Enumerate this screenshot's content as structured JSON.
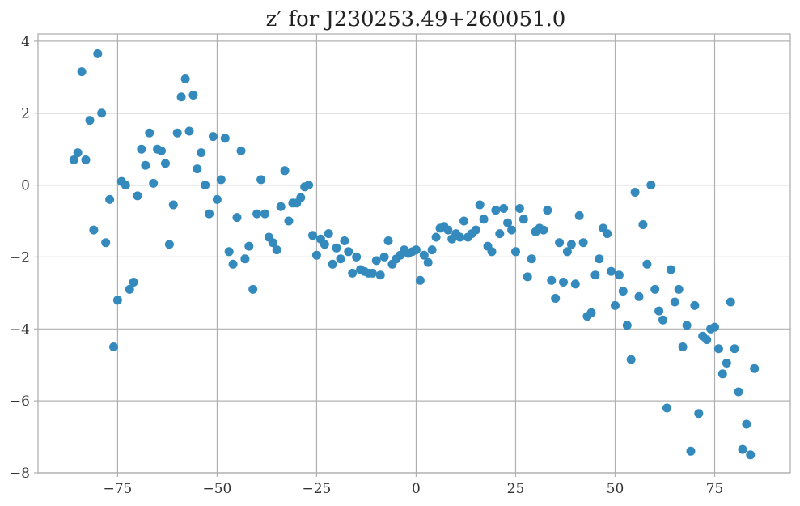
{
  "chart_data": {
    "type": "scatter",
    "title": "z′ for J230253.49+260051.0",
    "xlabel": "",
    "ylabel": "",
    "xlim": [
      -95,
      94
    ],
    "ylim": [
      -8,
      4.2
    ],
    "grid": true,
    "x_ticks": [
      -75,
      -50,
      -25,
      0,
      25,
      50,
      75
    ],
    "y_ticks": [
      -8,
      -6,
      -4,
      -2,
      0,
      2,
      4
    ],
    "x_tick_labels": [
      "−75",
      "−50",
      "−25",
      "0",
      "25",
      "50",
      "75"
    ],
    "y_tick_labels": [
      "−8",
      "−6",
      "−4",
      "−2",
      "0",
      "2",
      "4"
    ],
    "marker_color": "#348abd",
    "x": [
      -86,
      -85,
      -84,
      -83,
      -82,
      -81,
      -80,
      -79,
      -78,
      -77,
      -76,
      -75,
      -74,
      -73,
      -72,
      -71,
      -70,
      -69,
      -68,
      -67,
      -66,
      -65,
      -64,
      -63,
      -62,
      -61,
      -60,
      -59,
      -58,
      -57,
      -56,
      -55,
      -54,
      -53,
      -52,
      -51,
      -50,
      -49,
      -48,
      -47,
      -46,
      -45,
      -44,
      -43,
      -42,
      -41,
      -40,
      -39,
      -38,
      -37,
      -36,
      -35,
      -34,
      -33,
      -32,
      -31,
      -30,
      -29,
      -28,
      -27,
      -26,
      -25,
      -24,
      -23,
      -22,
      -21,
      -20,
      -19,
      -18,
      -17,
      -16,
      -15,
      -14,
      -13,
      -12,
      -11,
      -10,
      -9,
      -8,
      -7,
      -6,
      -5,
      -4,
      -3,
      -2,
      -1,
      0,
      1,
      2,
      3,
      4,
      5,
      6,
      7,
      8,
      9,
      10,
      11,
      12,
      13,
      14,
      15,
      16,
      17,
      18,
      19,
      20,
      21,
      22,
      23,
      24,
      25,
      26,
      27,
      28,
      29,
      30,
      31,
      32,
      33,
      34,
      35,
      36,
      37,
      38,
      39,
      40,
      41,
      42,
      43,
      44,
      45,
      46,
      47,
      48,
      49,
      50,
      51,
      52,
      53,
      54,
      55,
      56,
      57,
      58,
      59,
      60,
      61,
      62,
      63,
      64,
      65,
      66,
      67,
      68,
      69,
      70,
      71,
      72,
      73,
      74,
      75,
      76,
      77,
      78,
      79,
      80,
      81,
      82,
      83,
      84,
      85
    ],
    "y": [
      0.7,
      0.9,
      3.15,
      0.7,
      1.8,
      -1.25,
      3.65,
      2.0,
      -1.6,
      -0.4,
      -4.5,
      -3.2,
      0.1,
      0.0,
      -2.9,
      -2.7,
      -0.3,
      1.0,
      0.55,
      1.45,
      0.05,
      1.0,
      0.95,
      0.6,
      -1.65,
      -0.55,
      1.45,
      2.45,
      2.95,
      1.5,
      2.5,
      0.45,
      0.9,
      0.0,
      -0.8,
      1.35,
      -0.4,
      0.15,
      1.3,
      -1.85,
      -2.2,
      -0.9,
      0.95,
      -2.05,
      -1.7,
      -2.9,
      -0.8,
      0.15,
      -0.8,
      -1.45,
      -1.6,
      -1.8,
      -0.6,
      0.4,
      -1.0,
      -0.5,
      -0.5,
      -0.35,
      -0.05,
      0.0,
      -1.4,
      -1.95,
      -1.5,
      -1.65,
      -1.35,
      -2.2,
      -1.75,
      -2.05,
      -1.55,
      -1.85,
      -2.45,
      -2.0,
      -2.35,
      -2.4,
      -2.45,
      -2.45,
      -2.1,
      -2.5,
      -2.0,
      -1.55,
      -2.2,
      -2.05,
      -1.95,
      -1.8,
      -1.9,
      -1.85,
      -1.8,
      -2.65,
      -1.95,
      -2.15,
      -1.8,
      -1.45,
      -1.2,
      -1.15,
      -1.25,
      -1.5,
      -1.35,
      -1.45,
      -1.0,
      -1.45,
      -1.35,
      -1.25,
      -0.55,
      -0.95,
      -1.7,
      -1.85,
      -0.7,
      -1.35,
      -0.65,
      -1.05,
      -1.25,
      -1.85,
      -0.65,
      -0.95,
      -2.55,
      -2.05,
      -1.3,
      -1.2,
      -1.25,
      -0.7,
      -2.65,
      -3.15,
      -1.6,
      -2.7,
      -1.85,
      -1.65,
      -2.75,
      -0.85,
      -1.6,
      -3.65,
      -3.55,
      -2.5,
      -2.05,
      -1.2,
      -1.35,
      -2.4,
      -3.35,
      -2.5,
      -2.95,
      -3.9,
      -4.85,
      -0.2,
      -3.1,
      -1.1,
      -2.2,
      0.0,
      -2.9,
      -3.5,
      -3.75,
      -6.2,
      -2.35,
      -3.25,
      -2.9,
      -4.5,
      -3.9,
      -7.4,
      -3.35,
      -6.35,
      -4.2,
      -4.3,
      -4.0,
      -3.95,
      -4.55,
      -5.25,
      -4.95,
      -3.25,
      -4.55,
      -5.75,
      -7.35,
      -6.65,
      -7.5,
      -5.1
    ]
  }
}
